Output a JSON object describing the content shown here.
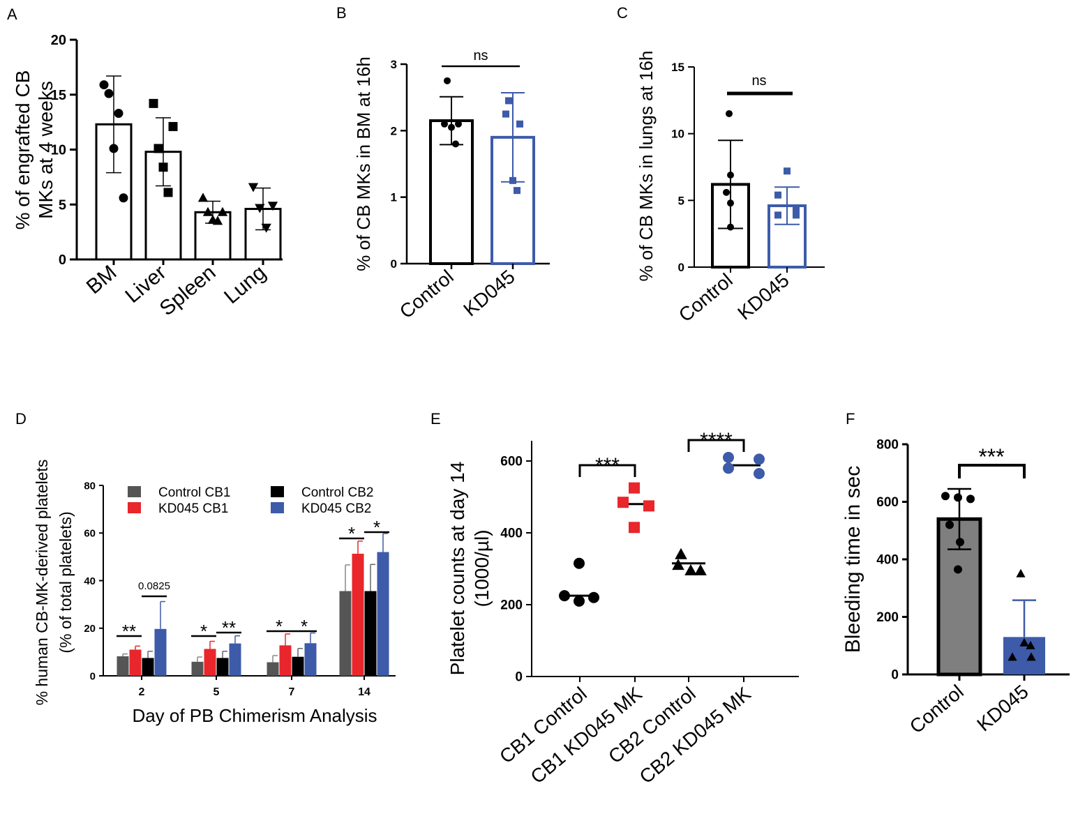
{
  "figure": {
    "colors": {
      "black": "#000000",
      "grey": "#7f7f7f",
      "dark_grey": "#555555",
      "red": "#e8262b",
      "blue": "#3d5ba9"
    }
  },
  "chart_data": [
    {
      "panel": "A",
      "type": "bar",
      "title": "",
      "xlabel": "",
      "ylabel_lines": [
        "% of  engrafted CB",
        "MKs at 4 weeks"
      ],
      "ylim": [
        0,
        20
      ],
      "yticks": [
        0,
        5,
        10,
        15,
        20
      ],
      "categories": [
        "BM",
        "Liver",
        "Spleen",
        "Lung"
      ],
      "values": [
        12.3,
        9.8,
        4.3,
        4.6
      ],
      "errors": [
        4.4,
        3.1,
        1.0,
        1.9
      ],
      "points": [
        [
          15.9,
          15.1,
          10.1,
          13.3,
          5.6
        ],
        [
          14.2,
          10.1,
          8.4,
          6.1,
          12.1
        ],
        [
          5.6,
          4.3,
          3.6,
          3.5,
          4.3
        ],
        [
          6.6,
          4.7,
          2.9,
          4.9
        ]
      ],
      "markers": [
        "circle",
        "square",
        "triangle",
        "triangle-down"
      ]
    },
    {
      "panel": "B",
      "type": "bar",
      "ylabel": "% of CB MKs in BM at 16h",
      "ylim": [
        0,
        3
      ],
      "yticks": [
        0,
        1,
        2,
        3
      ],
      "categories": [
        "Control",
        "KD045"
      ],
      "values": [
        2.15,
        1.9
      ],
      "errors": [
        0.36,
        0.67
      ],
      "points": [
        [
          2.75,
          2.1,
          2.1,
          2.05,
          1.8
        ],
        [
          2.45,
          2.25,
          2.1,
          1.25,
          1.1
        ]
      ],
      "significance": "ns"
    },
    {
      "panel": "C",
      "type": "bar",
      "ylabel": "% of CB MKs in lungs at 16h",
      "ylim": [
        0,
        15
      ],
      "yticks": [
        0,
        5,
        10,
        15
      ],
      "categories": [
        "Control",
        "KD045"
      ],
      "values": [
        6.2,
        4.6
      ],
      "errors": [
        3.3,
        1.4
      ],
      "points": [
        [
          11.5,
          6.9,
          5.6,
          4.8,
          3.0
        ],
        [
          7.2,
          5.4,
          4.3,
          3.9,
          3.9
        ]
      ],
      "significance": "ns"
    },
    {
      "panel": "D",
      "type": "bar",
      "xlabel": "Day of PB Chimerism Analysis",
      "ylabel_lines": [
        "% human CB-MK-derived platelets",
        "(% of total platelets)"
      ],
      "ylim": [
        0,
        80
      ],
      "yticks": [
        0,
        20,
        40,
        60,
        80
      ],
      "categories": [
        "2",
        "5",
        "7",
        "14"
      ],
      "series": [
        {
          "name": "Control CB1",
          "values": [
            8.2,
            5.9,
            5.7,
            35.6
          ],
          "errors": [
            1.0,
            2.0,
            2.8,
            11.0
          ]
        },
        {
          "name": "KD045 CB1",
          "values": [
            11.0,
            11.3,
            12.8,
            51.3
          ],
          "errors": [
            1.5,
            3.2,
            4.8,
            5.3
          ]
        },
        {
          "name": "Control CB2",
          "values": [
            7.5,
            7.5,
            8.0,
            35.6
          ],
          "errors": [
            2.8,
            2.8,
            3.5,
            11.2
          ]
        },
        {
          "name": "KD045 CB2",
          "values": [
            19.7,
            13.6,
            13.7,
            52.0
          ],
          "errors": [
            11.5,
            3.2,
            4.3,
            7.8
          ]
        }
      ],
      "legend_position": "top-left",
      "annotations": [
        {
          "day": "2",
          "pair": "CB1",
          "label": "**"
        },
        {
          "day": "2",
          "pair": "CB2",
          "label": "0.0825"
        },
        {
          "day": "5",
          "pair": "CB1",
          "label": "*"
        },
        {
          "day": "5",
          "pair": "CB2",
          "label": "**"
        },
        {
          "day": "7",
          "pair": "CB1",
          "label": "*"
        },
        {
          "day": "7",
          "pair": "CB2",
          "label": "*"
        },
        {
          "day": "14",
          "pair": "CB1",
          "label": "*"
        },
        {
          "day": "14",
          "pair": "CB2",
          "label": "*"
        }
      ]
    },
    {
      "panel": "E",
      "type": "scatter",
      "ylabel_lines": [
        "Platelet counts at day 14",
        "(1000/µl)"
      ],
      "ylim": [
        0,
        650
      ],
      "yticks": [
        0,
        200,
        400,
        600
      ],
      "categories": [
        "CB1 Control",
        "CB1 KD045 MK",
        "CB2 Control",
        "CB2 KD045 MK"
      ],
      "medians": [
        225,
        480,
        315,
        588
      ],
      "points": [
        [
          315,
          225,
          220,
          210
        ],
        [
          525,
          485,
          475,
          415
        ],
        [
          340,
          310,
          295,
          295
        ],
        [
          610,
          605,
          580,
          565
        ]
      ],
      "markers": [
        "circle",
        "square",
        "triangle",
        "circle"
      ],
      "comparisons": [
        {
          "groups": [
            "CB1 Control",
            "CB1 KD045 MK"
          ],
          "label": "***"
        },
        {
          "groups": [
            "CB2 Control",
            "CB2 KD045 MK"
          ],
          "label": "****"
        }
      ]
    },
    {
      "panel": "F",
      "type": "bar",
      "ylabel": "Bleeding time in sec",
      "ylim": [
        0,
        800
      ],
      "yticks": [
        0,
        200,
        400,
        600,
        800
      ],
      "categories": [
        "Control",
        "KD045"
      ],
      "values": [
        540,
        130
      ],
      "errors": [
        105,
        128
      ],
      "points": [
        [
          620,
          615,
          610,
          520,
          460,
          365
        ],
        [
          350,
          110,
          100,
          60,
          60
        ]
      ],
      "significance": "***"
    }
  ]
}
